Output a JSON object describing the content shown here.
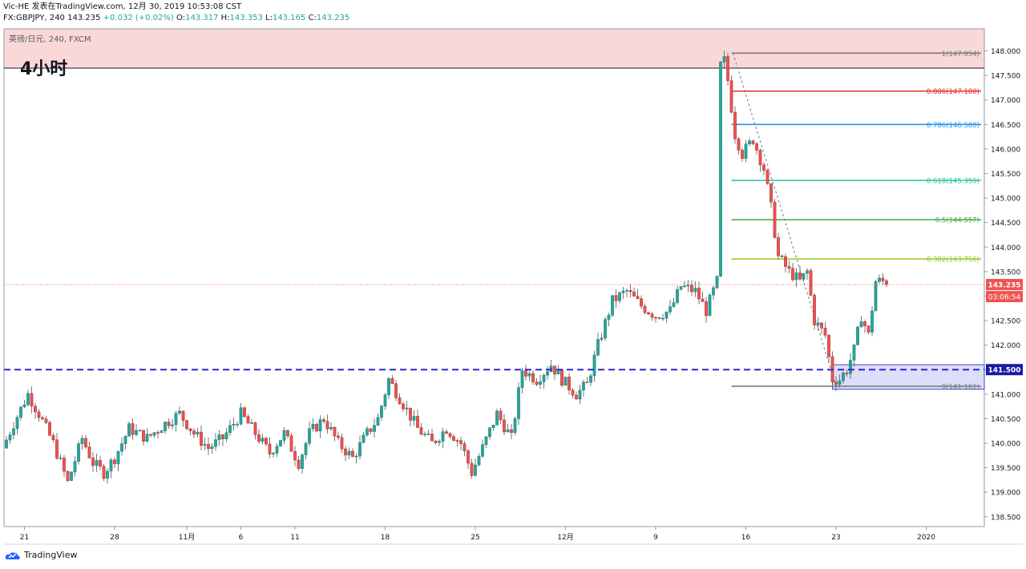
{
  "header": {
    "line1": "Vic-HE 发表在TradingView.com, 12月 30, 2019 10:53:08 CST",
    "symbol_prefix": "FX:GBPJPY, 240",
    "last": "143.235",
    "change": "+0.032 (+0.02%)",
    "open_label": "O:",
    "open": "143.317",
    "high_label": "H:",
    "high": "143.353",
    "low_label": "L:",
    "low": "143.165",
    "close_label": "C:",
    "close": "143.235"
  },
  "chart_data": {
    "type": "candlestick",
    "title": "英镑/日元, 240, FXCM",
    "annotation": "4小时",
    "ylim": [
      138.3,
      148.45
    ],
    "y_ticks": [
      "138.500",
      "139.000",
      "139.500",
      "140.000",
      "140.500",
      "141.000",
      "141.500",
      "142.000",
      "142.500",
      "143.000",
      "143.500",
      "144.000",
      "144.500",
      "145.000",
      "145.500",
      "146.000",
      "146.500",
      "147.000",
      "147.500",
      "148.000"
    ],
    "x_ticks": [
      {
        "label": "21",
        "bar": 5
      },
      {
        "label": "28",
        "bar": 30
      },
      {
        "label": "11月",
        "bar": 50
      },
      {
        "label": "6",
        "bar": 65
      },
      {
        "label": "11",
        "bar": 80
      },
      {
        "label": "18",
        "bar": 105
      },
      {
        "label": "25",
        "bar": 130
      },
      {
        "label": "12月",
        "bar": 155
      },
      {
        "label": "9",
        "bar": 180
      },
      {
        "label": "16",
        "bar": 205
      },
      {
        "label": "23",
        "bar": 230
      },
      {
        "label": "2020",
        "bar": 255
      }
    ],
    "current_price": {
      "value": 143.235,
      "label": "143.235",
      "countdown": "03:06:54"
    },
    "support_line": {
      "value": 141.5,
      "label": "141.500"
    },
    "resistance_zone": {
      "low": 147.65,
      "high": 148.45
    },
    "support_zone": {
      "low": 141.1,
      "high": 141.6,
      "from_bar": 229
    },
    "fibonacci": [
      {
        "level": "1",
        "price": 147.954,
        "label": "1(147.954)",
        "color": "#787b86"
      },
      {
        "level": "0.886",
        "price": 147.18,
        "label": "0.886(147.180)",
        "color": "#e53935"
      },
      {
        "level": "0.786",
        "price": 146.5,
        "label": "0.786(146.500)",
        "color": "#2196f3"
      },
      {
        "level": "0.618",
        "price": 145.359,
        "label": "0.618(145.359)",
        "color": "#26c6a0"
      },
      {
        "level": "0.5",
        "price": 144.557,
        "label": "0.5(144.557)",
        "color": "#4caf50"
      },
      {
        "level": "0.382",
        "price": 143.756,
        "label": "0.382(143.756)",
        "color": "#9ccc32"
      },
      {
        "level": "0",
        "price": 141.161,
        "label": "0(141.161)",
        "color": "#787b86"
      }
    ],
    "fib_from_bar": 201,
    "price_path": [
      [
        0,
        139.9
      ],
      [
        3,
        140.4
      ],
      [
        7,
        141.0
      ],
      [
        10,
        140.6
      ],
      [
        14,
        140.0
      ],
      [
        18,
        139.2
      ],
      [
        22,
        140.1
      ],
      [
        25,
        139.6
      ],
      [
        28,
        139.4
      ],
      [
        31,
        139.7
      ],
      [
        35,
        140.3
      ],
      [
        40,
        140.1
      ],
      [
        45,
        140.4
      ],
      [
        49,
        140.6
      ],
      [
        53,
        140.2
      ],
      [
        57,
        139.9
      ],
      [
        61,
        140.1
      ],
      [
        66,
        140.6
      ],
      [
        70,
        140.2
      ],
      [
        74,
        139.8
      ],
      [
        78,
        140.2
      ],
      [
        82,
        139.6
      ],
      [
        85,
        140.2
      ],
      [
        89,
        140.5
      ],
      [
        93,
        140.0
      ],
      [
        97,
        139.7
      ],
      [
        101,
        140.2
      ],
      [
        104,
        140.5
      ],
      [
        107,
        141.3
      ],
      [
        111,
        140.8
      ],
      [
        115,
        140.3
      ],
      [
        119,
        140.0
      ],
      [
        123,
        140.3
      ],
      [
        127,
        140.0
      ],
      [
        130,
        139.4
      ],
      [
        133,
        139.9
      ],
      [
        137,
        140.6
      ],
      [
        141,
        140.1
      ],
      [
        144,
        141.5
      ],
      [
        148,
        141.3
      ],
      [
        152,
        141.6
      ],
      [
        155,
        141.3
      ],
      [
        159,
        141.0
      ],
      [
        162,
        141.2
      ],
      [
        165,
        142.0
      ],
      [
        169,
        142.9
      ],
      [
        173,
        143.1
      ],
      [
        177,
        142.8
      ],
      [
        181,
        142.6
      ],
      [
        185,
        142.7
      ],
      [
        188,
        143.2
      ],
      [
        192,
        143.1
      ],
      [
        195,
        142.7
      ],
      [
        198,
        143.3
      ],
      [
        199,
        147.7
      ],
      [
        200,
        147.8
      ],
      [
        201,
        147.4
      ],
      [
        203,
        146.3
      ],
      [
        205,
        145.9
      ],
      [
        208,
        146.2
      ],
      [
        211,
        145.6
      ],
      [
        213,
        144.8
      ],
      [
        215,
        143.8
      ],
      [
        218,
        143.5
      ],
      [
        221,
        143.3
      ],
      [
        223,
        143.5
      ],
      [
        225,
        142.5
      ],
      [
        228,
        142.2
      ],
      [
        230,
        141.3
      ],
      [
        232,
        141.3
      ],
      [
        234,
        141.5
      ],
      [
        236,
        141.9
      ],
      [
        238,
        142.6
      ],
      [
        240,
        142.2
      ],
      [
        242,
        143.3
      ],
      [
        244,
        143.3
      ]
    ]
  },
  "footer": {
    "brand": "TradingView"
  }
}
